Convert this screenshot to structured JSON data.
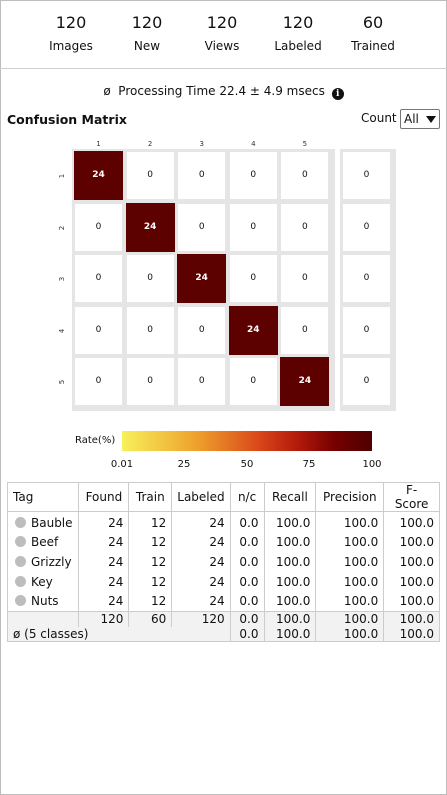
{
  "stats": [
    {
      "value": "120",
      "label": "Images"
    },
    {
      "value": "120",
      "label": "New"
    },
    {
      "value": "120",
      "label": "Views"
    },
    {
      "value": "120",
      "label": "Labeled"
    },
    {
      "value": "60",
      "label": "Trained"
    }
  ],
  "processing": {
    "symbol": "ø",
    "text": "Processing Time 22.4 ± 4.9 msecs",
    "info_icon": "i"
  },
  "confusion": {
    "title": "Confusion Matrix",
    "count_label": "Count",
    "select_value": "All",
    "col_labels": [
      "1",
      "2",
      "3",
      "4",
      "5"
    ],
    "row_labels": [
      "1",
      "2",
      "3",
      "4",
      "5"
    ],
    "matrix": [
      [
        "24",
        "0",
        "0",
        "0",
        "0"
      ],
      [
        "0",
        "24",
        "0",
        "0",
        "0"
      ],
      [
        "0",
        "0",
        "24",
        "0",
        "0"
      ],
      [
        "0",
        "0",
        "0",
        "24",
        "0"
      ],
      [
        "0",
        "0",
        "0",
        "0",
        "24"
      ]
    ],
    "side_column": [
      "0",
      "0",
      "0",
      "0",
      "0"
    ],
    "diagonal_color": "#5d0000"
  },
  "colorbar": {
    "label": "Rate(%)",
    "ticks": [
      "0.01",
      "25",
      "50",
      "75",
      "100"
    ],
    "colors": [
      "#f8f05a",
      "#eea12c",
      "#d9461a",
      "#b41a0b",
      "#760000",
      "#4e0000"
    ]
  },
  "table": {
    "headers": [
      "Tag",
      "Found",
      "Train",
      "Labeled",
      "n/c",
      "Recall",
      "Precision",
      "F-Score"
    ],
    "rows": [
      {
        "tag": "Bauble",
        "found": "24",
        "train": "12",
        "labeled": "24",
        "nc": "0.0",
        "recall": "100.0",
        "precision": "100.0",
        "fscore": "100.0"
      },
      {
        "tag": "Beef",
        "found": "24",
        "train": "12",
        "labeled": "24",
        "nc": "0.0",
        "recall": "100.0",
        "precision": "100.0",
        "fscore": "100.0"
      },
      {
        "tag": "Grizzly",
        "found": "24",
        "train": "12",
        "labeled": "24",
        "nc": "0.0",
        "recall": "100.0",
        "precision": "100.0",
        "fscore": "100.0"
      },
      {
        "tag": "Key",
        "found": "24",
        "train": "12",
        "labeled": "24",
        "nc": "0.0",
        "recall": "100.0",
        "precision": "100.0",
        "fscore": "100.0"
      },
      {
        "tag": "Nuts",
        "found": "24",
        "train": "12",
        "labeled": "24",
        "nc": "0.0",
        "recall": "100.0",
        "precision": "100.0",
        "fscore": "100.0"
      }
    ],
    "totals": {
      "found": "120",
      "train": "60",
      "labeled": "120",
      "nc": "0.0",
      "recall": "100.0",
      "precision": "100.0",
      "fscore": "100.0"
    },
    "average": {
      "label": "ø (5 classes)",
      "nc": "0.0",
      "recall": "100.0",
      "precision": "100.0",
      "fscore": "100.0"
    }
  }
}
